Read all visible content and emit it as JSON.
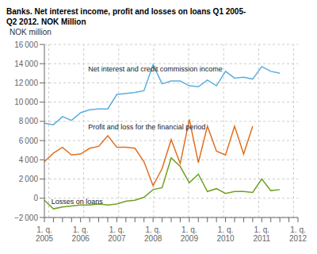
{
  "chart_data": {
    "type": "line",
    "title": "Banks. Net interest income, profit and losses on loans Q1 2005-\nQ2 2012. NOK Million",
    "y_label": "NOK million",
    "categories": [
      "1. q.\n2005",
      null,
      null,
      null,
      "1. q.\n2006",
      null,
      null,
      null,
      "1. q.\n2007",
      null,
      null,
      null,
      "1. q.\n2008",
      null,
      null,
      null,
      "1. q.\n2009",
      null,
      null,
      null,
      "1. q.\n2010",
      null,
      null,
      null,
      "1. q.\n2011",
      null,
      null,
      null,
      "1. q.\n2012"
    ],
    "series": [
      {
        "color": "#5baee0",
        "values": [
          7800,
          7650,
          8500,
          8100,
          8900,
          9200,
          9300,
          9300,
          10800,
          10900,
          11000,
          11200,
          13900,
          11900,
          12200,
          12200,
          11700,
          11600,
          12300,
          11700,
          13200,
          12500,
          12600,
          12400,
          13700,
          13200,
          13000,
          null,
          null
        ]
      },
      {
        "color": "#e07020",
        "values": [
          3800,
          4700,
          5300,
          4500,
          4600,
          5200,
          5400,
          6500,
          5300,
          5300,
          5200,
          3800,
          1300,
          3100,
          6100,
          3600,
          8200,
          3700,
          7500,
          4900,
          4500,
          7500,
          4600,
          7500,
          null,
          null,
          null,
          null,
          null
        ]
      },
      {
        "color": "#70a020",
        "values": [
          -200,
          -1100,
          -900,
          -800,
          -700,
          -700,
          -600,
          -700,
          -600,
          -300,
          -200,
          100,
          900,
          1100,
          4200,
          3300,
          1600,
          2500,
          700,
          1000,
          500,
          700,
          700,
          600,
          2000,
          800,
          900,
          null,
          null
        ]
      }
    ],
    "ylim": [
      -2000,
      16000
    ],
    "yticks": [
      {
        "value": -2000,
        "label": "−2 000"
      },
      0,
      {
        "value": 2000,
        "label": "2 000"
      },
      {
        "value": 4000,
        "label": "4 000"
      },
      {
        "value": 6000,
        "label": "6 000"
      },
      {
        "value": 8000,
        "label": "8 000"
      },
      {
        "value": 10000,
        "label": "10 000"
      },
      {
        "value": 12000,
        "label": "12 000"
      },
      {
        "value": 14000,
        "label": "14 000"
      },
      {
        "value": 16000,
        "label": "16 000"
      }
    ],
    "grid": true,
    "annotations": [
      {
        "text": "Net interest and credit commission income",
        "x": 4.5,
        "y": 13200
      },
      {
        "text": "Profit and loss for the financial period",
        "x": 4.5,
        "y": 7200
      },
      {
        "text": "Losses on loans",
        "x": 0.3,
        "y": -600
      }
    ]
  }
}
